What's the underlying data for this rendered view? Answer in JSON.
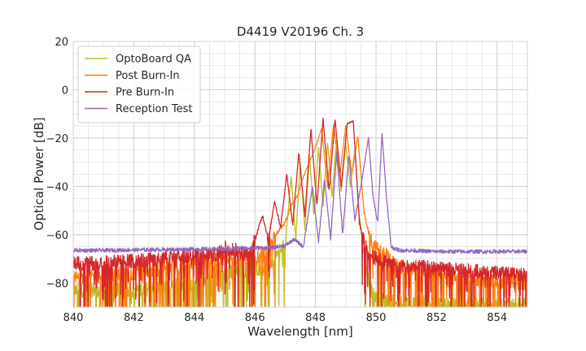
{
  "chart_data": {
    "type": "line",
    "title": "D4419 V20196 Ch. 3",
    "xlabel": "Wavelength [nm]",
    "ylabel": "Optical Power [dB]",
    "xlim": [
      840,
      855
    ],
    "ylim": [
      -90,
      20
    ],
    "x_ticks": [
      "840",
      "842",
      "844",
      "846",
      "848",
      "850",
      "852",
      "854"
    ],
    "y_ticks": [
      "20",
      "0",
      "−20",
      "−40",
      "−60",
      "−80"
    ],
    "x_tick_values": [
      840,
      842,
      844,
      846,
      848,
      850,
      852,
      854
    ],
    "y_tick_values": [
      20,
      0,
      -20,
      -40,
      -60,
      -80
    ],
    "grid": true,
    "legend_position": "top-left",
    "series": [
      {
        "name": "OptoBoard QA",
        "color": "#bcbd22",
        "noise_floor": true,
        "x": [
          840,
          842,
          843,
          844,
          845,
          845.8,
          846.2,
          846.5,
          846.8,
          847.0,
          847.2,
          847.35,
          847.5,
          847.65,
          847.8,
          847.95,
          848.1,
          848.25,
          848.4,
          848.55,
          848.7,
          848.85,
          849.0,
          849.15,
          849.3,
          849.45,
          849.6,
          849.8,
          850.0,
          850.3,
          851,
          852,
          853,
          854,
          855
        ],
        "y": [
          -83,
          -83,
          -82,
          -80,
          -76,
          -74,
          -74,
          -72,
          -68,
          -64,
          -36,
          -62,
          -30,
          -58,
          -27,
          -52,
          -24,
          -48,
          -22,
          -44,
          -21,
          -42,
          -22,
          -40,
          -25,
          -52,
          -68,
          -82,
          -86,
          -87,
          -88,
          -89,
          -89,
          -89,
          -89
        ]
      },
      {
        "name": "Post Burn-In",
        "color": "#ff7f0e",
        "noise_floor": true,
        "x": [
          840,
          842,
          843,
          844,
          845,
          845.5,
          846.0,
          846.3,
          846.6,
          846.8,
          847.0,
          847.2,
          847.4,
          847.6,
          847.8,
          848.0,
          848.2,
          848.4,
          848.6,
          848.8,
          849.0,
          849.2,
          849.4,
          849.6,
          849.8,
          850.0,
          850.3,
          850.6,
          851,
          852,
          853,
          854,
          855
        ],
        "y": [
          -78,
          -76,
          -74,
          -72,
          -70,
          -70,
          -70,
          -68,
          -62,
          -58,
          -55,
          -48,
          -44,
          -36,
          -30,
          -24,
          -16,
          -40,
          -14,
          -36,
          -15,
          -35,
          -19,
          -50,
          -62,
          -65,
          -68,
          -72,
          -74,
          -76,
          -78,
          -79,
          -80
        ]
      },
      {
        "name": "Pre Burn-In",
        "color": "#d62728",
        "noise_floor": true,
        "x": [
          840,
          842,
          843,
          844,
          844.8,
          845.0,
          845.5,
          845.8,
          846.0,
          846.25,
          846.45,
          846.65,
          846.85,
          847.05,
          847.25,
          847.45,
          847.65,
          847.85,
          848.05,
          848.25,
          848.45,
          848.65,
          848.85,
          849.05,
          849.25,
          849.45,
          849.6,
          849.8,
          850.0,
          850.5,
          851,
          852,
          853,
          854,
          855
        ],
        "y": [
          -72,
          -71,
          -70,
          -69,
          -68,
          -65,
          -67,
          -68,
          -62,
          -52,
          -62,
          -46,
          -57,
          -35,
          -56,
          -26,
          -52,
          -16,
          -48,
          -12,
          -42,
          -12,
          -40,
          -14,
          -13,
          -55,
          -63,
          -68,
          -70,
          -72,
          -73,
          -74,
          -75,
          -76,
          -77
        ]
      },
      {
        "name": "Reception Test",
        "color": "#9467bd",
        "noise_floor": false,
        "x": [
          840,
          841,
          842,
          843,
          844,
          844.5,
          845,
          845.5,
          846,
          846.5,
          847,
          847.3,
          847.6,
          847.9,
          848.1,
          848.3,
          848.5,
          848.7,
          848.9,
          849.1,
          849.3,
          849.5,
          849.75,
          849.9,
          850.05,
          850.2,
          850.35,
          850.5,
          850.65,
          850.8,
          851,
          852,
          853,
          854,
          855
        ],
        "y": [
          -66.5,
          -66.5,
          -66.3,
          -66.2,
          -66,
          -66,
          -66,
          -65.5,
          -65.5,
          -65.5,
          -64.5,
          -62,
          -65,
          -40,
          -63,
          -37,
          -62,
          -26,
          -60,
          -27,
          -54,
          -40,
          -20,
          -44,
          -55,
          -18,
          -45,
          -65,
          -66,
          -66.5,
          -66.5,
          -67,
          -67,
          -67,
          -67
        ]
      }
    ]
  }
}
